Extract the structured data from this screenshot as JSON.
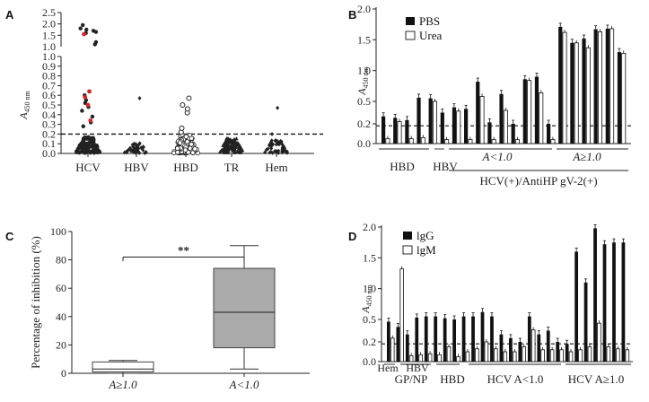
{
  "chart_data": [
    {
      "panel": "A",
      "type": "scatter",
      "ylabel": "A450 nm",
      "y_ticks_lower": [
        "0.0",
        "0.1",
        "0.2",
        "0.3",
        "0.4",
        "0.5",
        "0.6",
        "0.7",
        "0.8",
        "0.9",
        "1.0"
      ],
      "y_ticks_upper": [
        "1.0",
        "1.5",
        "2.0",
        "2.5"
      ],
      "threshold": 0.2,
      "categories": [
        "HCV",
        "HBV",
        "HBD",
        "TR",
        "Hem"
      ],
      "groups": [
        {
          "name": "HCV",
          "low_points": 120,
          "low_max": 0.17,
          "high_black": [
            0.28,
            0.32,
            0.38,
            0.44,
            0.48,
            0.52,
            0.55,
            0.6
          ],
          "high_red": [
            0.34,
            0.5,
            0.58,
            0.64
          ],
          "upper_black": [
            1.1,
            1.2,
            1.6,
            1.65,
            1.7,
            1.75,
            1.8,
            1.95
          ],
          "upper_red": [
            1.55
          ]
        },
        {
          "name": "HBV",
          "low_points": 40,
          "low_max": 0.1,
          "high_black": [
            0.57
          ],
          "high_red": [],
          "upper_black": [],
          "upper_red": []
        },
        {
          "name": "HBD",
          "low_points": 110,
          "low_max": 0.19,
          "high_open": [
            0.22,
            0.26,
            0.42,
            0.46,
            0.5,
            0.57
          ],
          "high_black": [],
          "high_red": [],
          "upper_black": [],
          "upper_red": []
        },
        {
          "name": "TR",
          "low_points": 110,
          "low_max": 0.15,
          "high_black": [],
          "high_red": [],
          "upper_black": [],
          "upper_red": []
        },
        {
          "name": "Hem",
          "low_points": 50,
          "low_max": 0.13,
          "high_black": [
            0.2,
            0.47
          ],
          "high_red": [],
          "upper_black": [],
          "upper_red": []
        }
      ]
    },
    {
      "panel": "B",
      "type": "bar",
      "ylabel": "A450 nm",
      "y_ticks": [
        "0.0",
        "0.2",
        "0.5",
        "1.0",
        "1.5",
        "2.0"
      ],
      "legend": [
        "PBS",
        "Urea"
      ],
      "threshold": 0.18,
      "series": [
        {
          "name": "PBS",
          "values": [
            0.3,
            0.28,
            0.25,
            0.56,
            0.55,
            0.35,
            0.42,
            0.4,
            0.82,
            0.22,
            0.62,
            0.2,
            0.86,
            0.9,
            0.2,
            1.71,
            1.45,
            1.52,
            1.67,
            1.68,
            1.3
          ]
        },
        {
          "name": "Urea",
          "values": [
            0.05,
            0.23,
            0.05,
            0.06,
            0.5,
            0.04,
            0.37,
            0.04,
            0.58,
            0.04,
            0.38,
            0.04,
            0.84,
            0.64,
            0.04,
            1.62,
            1.45,
            1.37,
            1.63,
            1.68,
            1.28
          ]
        }
      ],
      "group_labels": [
        "HBD",
        "HBV",
        "A<1.0",
        "A≥1.0",
        "HCV(+)/AntiHP gV-2(+)"
      ]
    },
    {
      "panel": "C",
      "type": "box",
      "ylabel": "Percentage of inhibition (%)",
      "y_ticks": [
        "0",
        "20",
        "40",
        "60",
        "80",
        "100"
      ],
      "ylim": [
        0,
        100
      ],
      "categories": [
        "A≥1.0",
        "A<1.0"
      ],
      "boxes": [
        {
          "min": 0,
          "q1": 1,
          "median": 3,
          "q3": 8,
          "max": 9
        },
        {
          "min": 3,
          "q1": 18,
          "median": 43,
          "q3": 74,
          "max": 90
        }
      ],
      "significance": "**"
    },
    {
      "panel": "D",
      "type": "bar",
      "ylabel": "A450 nm",
      "y_ticks": [
        "0.0",
        "0.2",
        "0.5",
        "1.0",
        "1.5",
        "2.0"
      ],
      "legend": [
        "lgG",
        "lgM"
      ],
      "threshold": 0.18,
      "series": [
        {
          "name": "lgG",
          "values": [
            0.47,
            0.4,
            0.3,
            0.53,
            0.55,
            0.55,
            0.52,
            0.5,
            0.55,
            0.55,
            0.62,
            0.55,
            0.3,
            0.25,
            0.2,
            0.55,
            0.3,
            0.35,
            0.2,
            0.18,
            1.6,
            1.1,
            1.98,
            1.72,
            1.75,
            1.75
          ]
        },
        {
          "name": "lgM",
          "values": [
            0.25,
            1.32,
            0.06,
            0.07,
            0.08,
            0.07,
            0.15,
            0.05,
            0.1,
            0.13,
            0.2,
            0.13,
            0.1,
            0.1,
            0.15,
            0.36,
            0.12,
            0.12,
            0.12,
            0.1,
            0.12,
            0.15,
            0.45,
            0.15,
            0.13,
            0.12
          ]
        }
      ],
      "group_labels": [
        "Hem",
        "HBV",
        "GP/NP",
        "HBD",
        "HCV A<1.0",
        "HCV A≥1.0"
      ]
    }
  ],
  "labels": {
    "A": "A",
    "B": "B",
    "C": "C",
    "D": "D",
    "ylab_a": "A",
    "ylab_sub": "450 nm",
    "B_group_hbd": "HBD",
    "B_group_hbv": "HBV",
    "B_group_lt": "A<1.0",
    "B_group_ge": "A≥1.0",
    "B_group_bottom": "HCV(+)/AntiHP gV-2(+)",
    "D_hem": "Hem",
    "D_hbv": "HBV",
    "D_gpnp": "GP/NP",
    "D_hbd": "HBD",
    "D_lt": "HCV A<1.0",
    "D_ge": "HCV A≥1.0",
    "C_cat1": "A≥1.0",
    "C_cat2": "A<1.0",
    "C_sig": "**"
  }
}
